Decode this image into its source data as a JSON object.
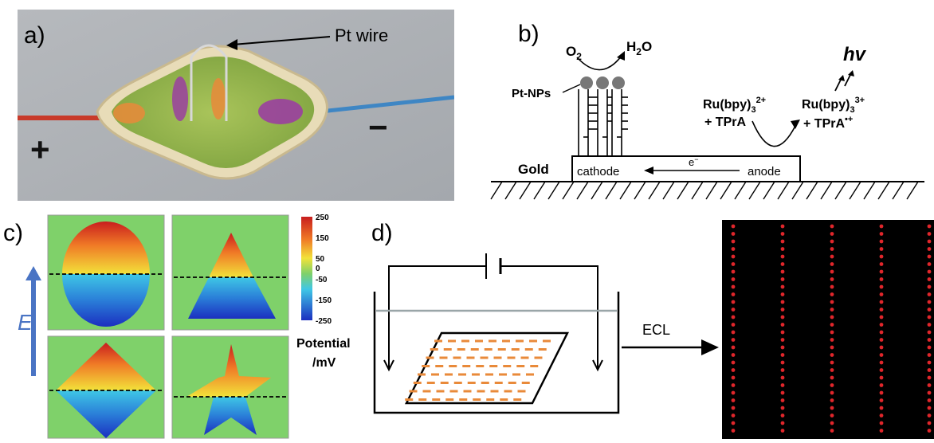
{
  "panel_a": {
    "label": "a)",
    "pt_wire_label": "Pt wire",
    "plus_sign": "+",
    "minus_sign": "−"
  },
  "panel_b": {
    "label": "b)",
    "o2": "O",
    "o2_sub": "2",
    "h2o_a": "H",
    "h2o_sub": "2",
    "h2o_b": "O",
    "hv": "hv",
    "pt_nps": "Pt-NPs",
    "ru2_a": "Ru(bpy)",
    "ru2_sub": "3",
    "ru2_sup": "2+",
    "tpra": "+ TPrA",
    "ru3_a": "Ru(bpy)",
    "ru3_sub": "3",
    "ru3_sup": "3+",
    "tpra_rad": "+ TPrA",
    "tpra_rad_sup": "•+",
    "gold": "Gold",
    "cathode": "cathode",
    "anode": "anode",
    "electron": "e",
    "electron_sup": "−"
  },
  "panel_c": {
    "label": "c)",
    "field": "E",
    "colorbar_ticks": [
      "250",
      "150",
      "50",
      "0",
      "-50",
      "-150",
      "-250"
    ],
    "potential_line1": "Potential",
    "potential_line2": "/mV"
  },
  "panel_d": {
    "label": "d)",
    "ecl": "ECL"
  },
  "colors": {
    "green_bg": "#7fd16a",
    "orange": "#e98a3a",
    "ecl_dot": "#e0262b"
  }
}
